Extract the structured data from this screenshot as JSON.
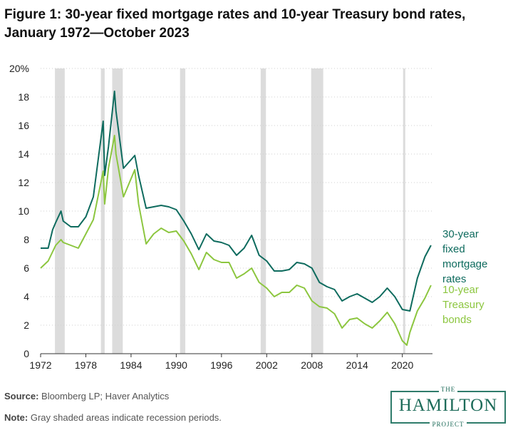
{
  "title": "Figure 1: 30-year fixed mortgage rates and 10-year Treasury bond rates, January 1972—October 2023",
  "footer": {
    "source_label": "Source:",
    "source_text": " Bloomberg LP; Haver Analytics",
    "note_label": "Note:",
    "note_text": " Gray shaded areas indicate recession periods."
  },
  "logo": {
    "top": "THE",
    "main": "HAMILTON",
    "bottom": "PROJECT"
  },
  "colors": {
    "mortgage": "#0e6b5e",
    "treasury": "#8cc63f",
    "recession": "#dcdcdc",
    "grid": "#cfcfcf"
  },
  "chart_data": {
    "type": "line",
    "title": "Figure 1: 30-year fixed mortgage rates and 10-year Treasury bond rates, January 1972—October 2023",
    "xlabel": "",
    "ylabel": "",
    "xlim": [
      1972,
      2024
    ],
    "ylim": [
      0,
      20
    ],
    "x_ticks": [
      1972,
      1978,
      1984,
      1990,
      1996,
      2002,
      2008,
      2014,
      2020
    ],
    "y_ticks": [
      0,
      2,
      4,
      6,
      8,
      10,
      12,
      14,
      16,
      18,
      20
    ],
    "y_tick_labels": [
      "0",
      "2",
      "4",
      "6",
      "8",
      "10",
      "12",
      "14",
      "16",
      "18",
      "20%"
    ],
    "grid": "horizontal dotted",
    "legend": "direct labels at line ends (right)",
    "recessions": [
      [
        1973.9,
        1975.2
      ],
      [
        1980.0,
        1980.5
      ],
      [
        1981.5,
        1982.9
      ],
      [
        1990.5,
        1991.2
      ],
      [
        2001.2,
        2001.9
      ],
      [
        2007.9,
        2009.5
      ],
      [
        2020.1,
        2020.3
      ]
    ],
    "series": [
      {
        "name": "30-year fixed mortgage rates",
        "label_lines": [
          "30-year",
          "fixed",
          "mortgage",
          "rates"
        ],
        "x": [
          1972,
          1973,
          1973.6,
          1974,
          1974.7,
          1975,
          1976,
          1977,
          1978,
          1979,
          1980.3,
          1980.5,
          1981,
          1981.8,
          1982,
          1983,
          1984.5,
          1985,
          1986,
          1987,
          1988,
          1989,
          1990,
          1991,
          1992,
          1993,
          1994,
          1995,
          1996,
          1997,
          1998,
          1999,
          2000,
          2001,
          2002,
          2003,
          2004,
          2005,
          2006,
          2007,
          2008,
          2009,
          2010,
          2011,
          2012,
          2013,
          2014,
          2015,
          2016,
          2017,
          2018,
          2019,
          2020,
          2021,
          2022,
          2023,
          2023.8
        ],
        "values": [
          7.4,
          7.4,
          8.7,
          9.2,
          10.0,
          9.3,
          8.9,
          8.9,
          9.6,
          11.0,
          16.3,
          12.5,
          14.5,
          18.4,
          17.0,
          13.0,
          13.9,
          12.5,
          10.2,
          10.3,
          10.4,
          10.3,
          10.1,
          9.3,
          8.4,
          7.3,
          8.4,
          7.9,
          7.8,
          7.6,
          6.9,
          7.4,
          8.3,
          6.9,
          6.5,
          5.8,
          5.8,
          5.9,
          6.4,
          6.3,
          6.0,
          5.0,
          4.7,
          4.5,
          3.7,
          4.0,
          4.2,
          3.9,
          3.6,
          4.0,
          4.6,
          4.0,
          3.1,
          3.0,
          5.3,
          6.8,
          7.6
        ]
      },
      {
        "name": "10-year Treasury bonds",
        "label_lines": [
          "10-year",
          "Treasury",
          "bonds"
        ],
        "x": [
          1972,
          1973,
          1974,
          1974.7,
          1975,
          1976,
          1977,
          1978,
          1979,
          1980.3,
          1980.5,
          1981,
          1981.8,
          1982,
          1983,
          1984.5,
          1985,
          1986,
          1987,
          1988,
          1989,
          1990,
          1991,
          1992,
          1993,
          1994,
          1995,
          1996,
          1997,
          1998,
          1999,
          2000,
          2001,
          2002,
          2003,
          2004,
          2005,
          2006,
          2007,
          2008,
          2009,
          2010,
          2011,
          2012,
          2013,
          2014,
          2015,
          2016,
          2017,
          2018,
          2019,
          2020,
          2020.6,
          2021,
          2022,
          2023,
          2023.8
        ],
        "values": [
          6.0,
          6.5,
          7.6,
          8.0,
          7.8,
          7.6,
          7.4,
          8.4,
          9.4,
          12.8,
          10.5,
          13.0,
          15.3,
          14.0,
          11.0,
          12.9,
          10.5,
          7.7,
          8.4,
          8.8,
          8.5,
          8.6,
          7.9,
          7.0,
          5.9,
          7.1,
          6.6,
          6.4,
          6.4,
          5.3,
          5.6,
          6.0,
          5.0,
          4.6,
          4.0,
          4.3,
          4.3,
          4.8,
          4.6,
          3.7,
          3.3,
          3.2,
          2.8,
          1.8,
          2.4,
          2.5,
          2.1,
          1.8,
          2.3,
          2.9,
          2.1,
          0.9,
          0.6,
          1.5,
          3.0,
          3.9,
          4.8
        ]
      }
    ]
  }
}
